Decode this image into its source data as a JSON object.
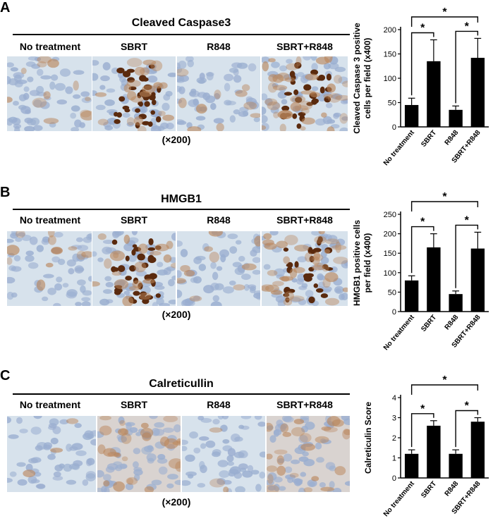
{
  "magnification": "(×200)",
  "columns": [
    "No treatment",
    "SBRT",
    "R848",
    "SBRT+R848"
  ],
  "colors": {
    "stain_dark": "#5a2a0e",
    "stain_light": "#b9855a",
    "nuclei": "#9aaed0",
    "background": "#d7e2ec",
    "bar": "#000000"
  },
  "panels": [
    {
      "label": "A",
      "title": "Cleaved Caspase3",
      "chart_data": {
        "type": "bar",
        "categories": [
          "No treatment",
          "SBRT",
          "R848",
          "SBRT+R848"
        ],
        "values": [
          45,
          135,
          35,
          142
        ],
        "errors": [
          14,
          44,
          8,
          40
        ],
        "ylabel_lines": [
          "Cleaved Caspase 3 positive",
          "cells per field (x400)"
        ],
        "ylim": [
          0,
          200
        ],
        "yticks": [
          0,
          50,
          100,
          150,
          200
        ],
        "significance": [
          {
            "from": 0,
            "to": 1,
            "label": "*"
          },
          {
            "from": 2,
            "to": 3,
            "label": "*"
          },
          {
            "from": 0,
            "to": 3,
            "label": "*"
          }
        ]
      }
    },
    {
      "label": "B",
      "title": "HMGB1",
      "chart_data": {
        "type": "bar",
        "categories": [
          "No treatment",
          "SBRT",
          "R848",
          "SBRT+R848"
        ],
        "values": [
          80,
          165,
          45,
          162
        ],
        "errors": [
          12,
          35,
          8,
          42
        ],
        "ylabel_lines": [
          "HMGB1 positive cells",
          "per field (x400)"
        ],
        "ylim": [
          0,
          250
        ],
        "yticks": [
          0,
          50,
          100,
          150,
          200,
          250
        ],
        "significance": [
          {
            "from": 0,
            "to": 1,
            "label": "*"
          },
          {
            "from": 2,
            "to": 3,
            "label": "*"
          },
          {
            "from": 0,
            "to": 3,
            "label": "*"
          }
        ]
      }
    },
    {
      "label": "C",
      "title": "Calreticullin",
      "chart_data": {
        "type": "bar",
        "categories": [
          "No treatment",
          "SBRT",
          "R848",
          "SBRT+R848"
        ],
        "values": [
          1.2,
          2.6,
          1.2,
          2.8
        ],
        "errors": [
          0.2,
          0.25,
          0.2,
          0.2
        ],
        "ylabel_lines": [
          "Calreticulin Score"
        ],
        "ylim": [
          0,
          4
        ],
        "yticks": [
          0,
          1,
          2,
          3,
          4
        ],
        "significance": [
          {
            "from": 0,
            "to": 1,
            "label": "*"
          },
          {
            "from": 2,
            "to": 3,
            "label": "*"
          },
          {
            "from": 0,
            "to": 3,
            "label": "*"
          }
        ]
      }
    }
  ]
}
